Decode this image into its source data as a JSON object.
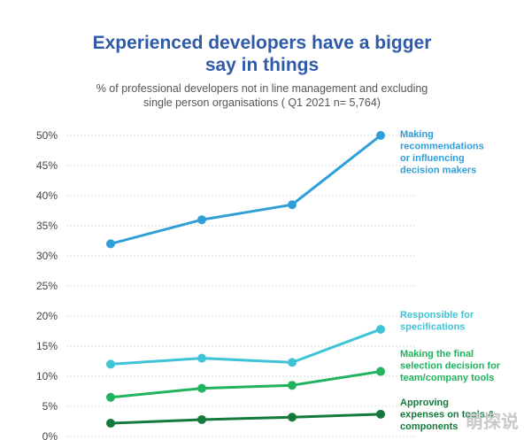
{
  "chart_data": {
    "type": "line",
    "title_lines": [
      "Experienced developers have a bigger",
      "say in things"
    ],
    "subtitle_lines": [
      "% of professional developers not in line management and excluding",
      "single person organisations ( Q1 2021 n= 5,764)"
    ],
    "ylim": [
      0,
      50
    ],
    "y_ticks": [
      "0%",
      "5%",
      "10%",
      "15%",
      "20%",
      "25%",
      "30%",
      "35%",
      "40%",
      "45%",
      "50%"
    ],
    "grid": true,
    "series": [
      {
        "name_lines": [
          "Making",
          "recommendations",
          "or influencing",
          "decision makers"
        ],
        "color": "#2e9fd8",
        "values": [
          32,
          36,
          38.5,
          50
        ]
      },
      {
        "name_lines": [
          "Responsible for",
          "specifications"
        ],
        "color": "#3ec4d6",
        "values": [
          12,
          13,
          12.3,
          17.8
        ]
      },
      {
        "name_lines": [
          "Making the final",
          "selection decision for",
          "team/company tools"
        ],
        "color": "#22b35e",
        "values": [
          6.5,
          8,
          8.5,
          10.8
        ]
      },
      {
        "name_lines": [
          "Approving",
          "expenses on tools &",
          "components"
        ],
        "color": "#137a3c",
        "values": [
          2.2,
          2.8,
          3.2,
          3.7
        ]
      }
    ]
  },
  "watermark": "萌探说"
}
